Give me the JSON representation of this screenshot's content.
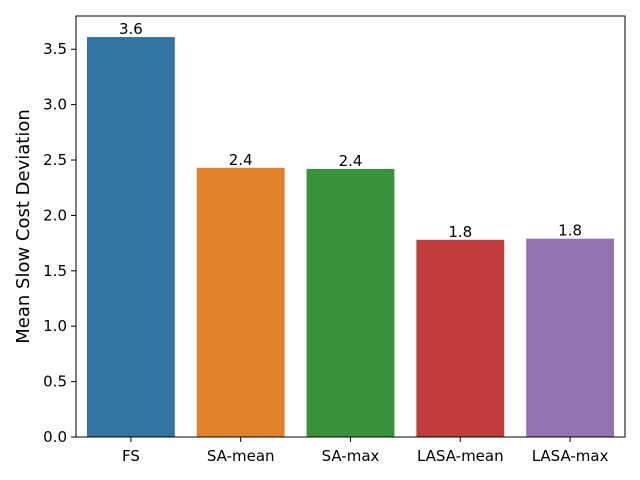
{
  "chart_data": {
    "type": "bar",
    "title": "",
    "xlabel": "",
    "ylabel": "Mean Slow Cost Deviation",
    "ylim": [
      0,
      3.8
    ],
    "yticks": [
      0.0,
      0.5,
      1.0,
      1.5,
      2.0,
      2.5,
      3.0,
      3.5
    ],
    "ytick_labels": [
      "0.0",
      "0.5",
      "1.0",
      "1.5",
      "2.0",
      "2.5",
      "3.0",
      "3.5"
    ],
    "grid": false,
    "categories": [
      "FS",
      "SA-mean",
      "SA-max",
      "LASA-mean",
      "LASA-max"
    ],
    "values": [
      3.61,
      2.43,
      2.42,
      1.78,
      1.79
    ],
    "data_labels": [
      "3.6",
      "2.4",
      "2.4",
      "1.8",
      "1.8"
    ],
    "colors": [
      "#3274a1",
      "#e1812c",
      "#3a923a",
      "#c03d3e",
      "#9372b2"
    ]
  }
}
